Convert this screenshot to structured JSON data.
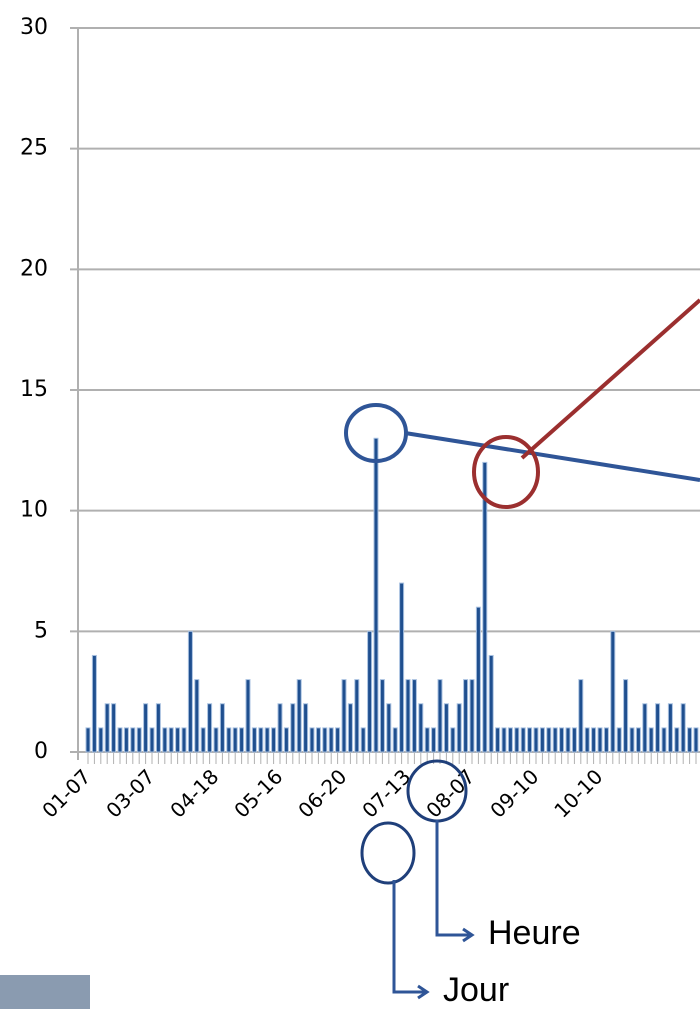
{
  "chart_data": {
    "type": "bar",
    "categories": [
      "01-07",
      null,
      null,
      null,
      null,
      null,
      null,
      null,
      null,
      null,
      "03-07",
      null,
      null,
      null,
      null,
      null,
      null,
      null,
      null,
      null,
      "04-18",
      null,
      null,
      null,
      null,
      null,
      null,
      null,
      null,
      null,
      "05-16",
      null,
      null,
      null,
      null,
      null,
      null,
      null,
      null,
      null,
      "06-20",
      null,
      null,
      null,
      null,
      null,
      null,
      null,
      null,
      null,
      "07-13",
      null,
      null,
      null,
      null,
      null,
      null,
      null,
      null,
      null,
      "08-07",
      null,
      null,
      null,
      null,
      null,
      null,
      null,
      null,
      null,
      "09-10",
      null,
      null,
      null,
      null,
      null,
      null,
      null,
      null,
      null,
      "10-10",
      null,
      null,
      null,
      null,
      null,
      null,
      null,
      null,
      null,
      null,
      null,
      null,
      null,
      null,
      null,
      null,
      null
    ],
    "values": [
      1,
      4,
      1,
      2,
      2,
      1,
      1,
      1,
      1,
      2,
      1,
      2,
      1,
      1,
      1,
      1,
      5,
      3,
      1,
      2,
      1,
      2,
      1,
      1,
      1,
      3,
      1,
      1,
      1,
      1,
      2,
      1,
      2,
      3,
      2,
      1,
      1,
      1,
      1,
      1,
      3,
      2,
      3,
      1,
      5,
      13,
      3,
      2,
      1,
      7,
      3,
      3,
      2,
      1,
      1,
      3,
      2,
      1,
      2,
      3,
      3,
      6,
      12,
      4,
      1,
      1,
      1,
      1,
      1,
      1,
      1,
      1,
      1,
      1,
      1,
      1,
      1,
      3,
      1,
      1,
      1,
      1,
      5,
      1,
      3,
      1,
      1,
      2,
      1,
      2,
      1,
      2,
      1,
      2,
      1,
      1,
      1,
      1
    ],
    "color": "#1f4f8f",
    "ylim": [
      0,
      30
    ],
    "yticks": [
      0,
      5,
      10,
      15,
      20,
      25,
      30
    ],
    "grid": true,
    "annotations": [
      "Heure",
      "Jour"
    ]
  }
}
